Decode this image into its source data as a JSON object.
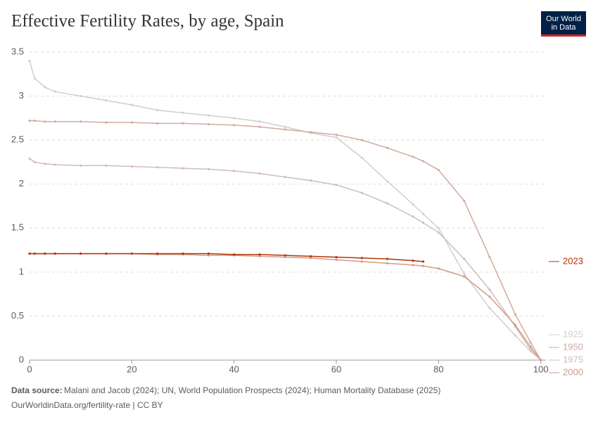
{
  "chart_data": {
    "type": "line",
    "title": "Effective Fertility Rates, by age, Spain",
    "logo": [
      "Our World",
      "in Data"
    ],
    "source_label": "Data source:",
    "source": "Malani and Jacob (2024); UN, World Population Prospects (2024); Human Mortality Database (2025)",
    "footer": "OurWorldinData.org/fertility-rate | CC BY",
    "x": [
      0,
      1,
      3,
      5,
      10,
      15,
      20,
      25,
      30,
      35,
      40,
      45,
      50,
      55,
      60,
      65,
      70,
      75,
      77,
      80,
      85,
      90,
      95,
      98,
      100
    ],
    "series": [
      {
        "name": "1925",
        "color": "#cfcfcf",
        "values": [
          3.4,
          3.2,
          3.1,
          3.05,
          3.0,
          2.95,
          2.9,
          2.84,
          2.81,
          2.78,
          2.75,
          2.71,
          2.65,
          2.58,
          2.53,
          2.3,
          2.03,
          1.77,
          1.66,
          1.5,
          0.98,
          0.59,
          0.28,
          0.1,
          0
        ]
      },
      {
        "name": "1950",
        "color": "#d2aa9e",
        "values": [
          2.72,
          2.72,
          2.71,
          2.71,
          2.71,
          2.7,
          2.7,
          2.69,
          2.69,
          2.68,
          2.67,
          2.65,
          2.62,
          2.59,
          2.56,
          2.5,
          2.41,
          2.31,
          2.26,
          2.16,
          1.81,
          1.17,
          0.52,
          0.2,
          0
        ]
      },
      {
        "name": "1975",
        "color": "#d0bdb6",
        "values": [
          2.29,
          2.25,
          2.23,
          2.22,
          2.21,
          2.21,
          2.2,
          2.19,
          2.18,
          2.17,
          2.15,
          2.12,
          2.08,
          2.04,
          1.99,
          1.9,
          1.78,
          1.63,
          1.56,
          1.45,
          1.15,
          0.8,
          0.38,
          0.12,
          0
        ]
      },
      {
        "name": "2000",
        "color": "#d39a84",
        "values": [
          1.21,
          1.21,
          1.21,
          1.21,
          1.21,
          1.21,
          1.21,
          1.2,
          1.2,
          1.19,
          1.19,
          1.18,
          1.17,
          1.16,
          1.14,
          1.12,
          1.1,
          1.08,
          1.07,
          1.04,
          0.95,
          0.72,
          0.4,
          0.15,
          0
        ]
      },
      {
        "name": "2023",
        "color": "#b13507",
        "values": [
          1.21,
          1.21,
          1.21,
          1.21,
          1.21,
          1.21,
          1.21,
          1.21,
          1.21,
          1.21,
          1.2,
          1.2,
          1.19,
          1.18,
          1.17,
          1.16,
          1.15,
          1.13,
          1.12,
          null,
          null,
          null,
          null,
          null,
          null
        ]
      }
    ],
    "xlim": [
      0,
      101
    ],
    "ylim": [
      0,
      3.5
    ],
    "xticks": [
      0,
      20,
      40,
      60,
      80,
      100
    ],
    "yticks": [
      0,
      0.5,
      1,
      1.5,
      2,
      2.5,
      3,
      3.5
    ],
    "grid": true
  }
}
